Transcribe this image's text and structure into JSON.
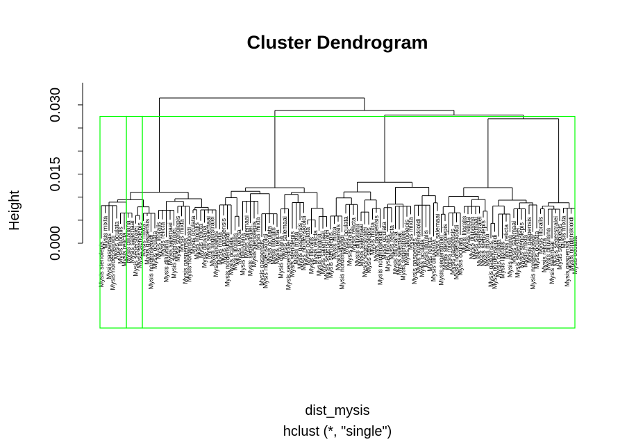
{
  "chart_data": {
    "type": "dendrogram",
    "title": "Cluster Dendrogram",
    "xlabel": "dist_mysis",
    "sub": "hclust (*, \"single\")",
    "ylabel": "Height",
    "ylim": [
      0.0,
      0.033
    ],
    "yticks": [
      0.0,
      0.005,
      0.01,
      0.015,
      0.02,
      0.025,
      0.03
    ],
    "ytick_labels": [
      "0.000",
      "",
      "",
      "0.015",
      "",
      "",
      "0.030"
    ],
    "leaf_count": 125,
    "leaf_label_prefix": "Mysis",
    "species": [
      "Mysis stenolepis",
      "Mysis mixta",
      "Mysis gaspensis",
      "Mysis nordenskioldi",
      "Mysis oculata",
      "Mysis litoralis",
      "Mysis relicta",
      "Mysis diluviana",
      "Mysis salemaai",
      "Mysis segerstralei"
    ],
    "branches": [
      {
        "x1": 0.0,
        "x2": 1.0,
        "height": 0.0315
      },
      {
        "x1": 0.13,
        "x2": 1.0,
        "height": 0.0288
      },
      {
        "x1": 0.25,
        "x2": 1.0,
        "height": 0.0278
      },
      {
        "x1": 0.42,
        "x2": 1.0,
        "height": 0.027
      },
      {
        "x1": 0.55,
        "x2": 1.0,
        "height": 0.0265
      },
      {
        "x1": 0.68,
        "x2": 1.0,
        "height": 0.0258
      },
      {
        "x1": 0.8,
        "x2": 0.92,
        "height": 0.0205
      },
      {
        "x1": 0.0,
        "x2": 0.95,
        "height": 0.015
      },
      {
        "x1": 0.0,
        "x2": 1.0,
        "height": 0.017
      }
    ],
    "cut_groups": 3,
    "group_rect_color": "#00ff00"
  }
}
